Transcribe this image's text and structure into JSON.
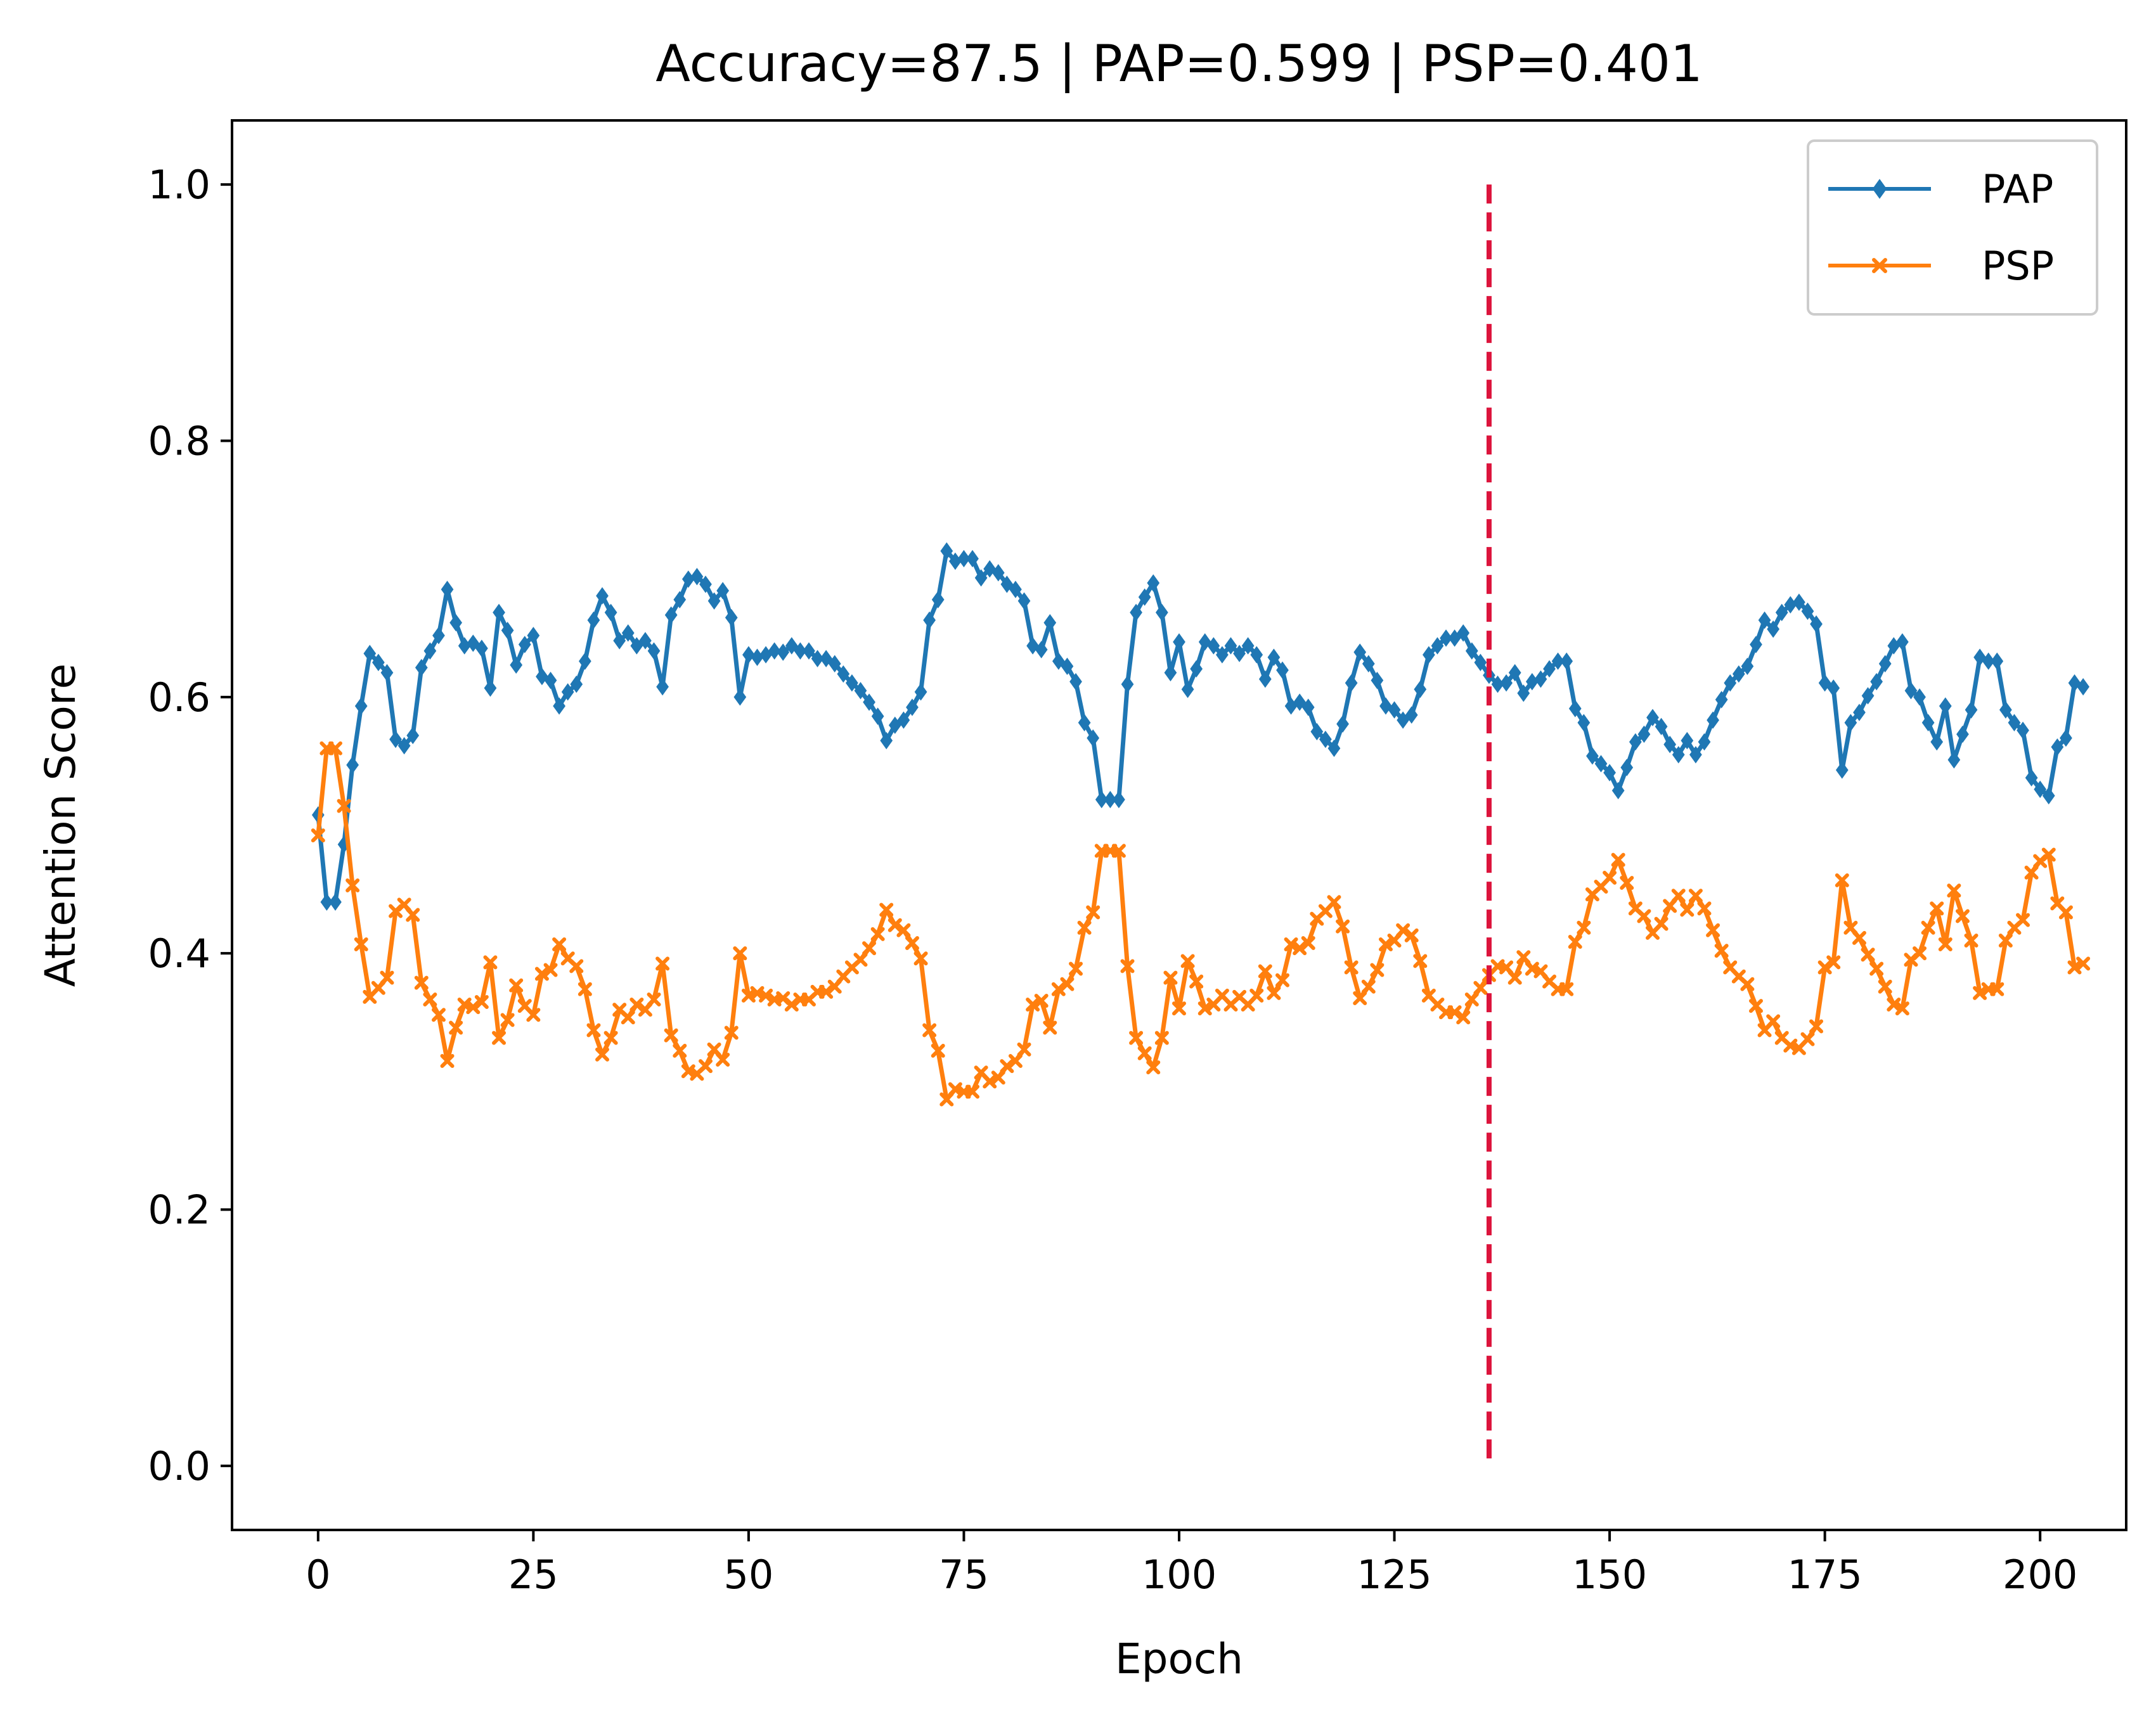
{
  "chart_data": {
    "type": "line",
    "title": "Accuracy=87.5 | PAP=0.599 | PSP=0.401",
    "xlabel": "Epoch",
    "ylabel": "Attention Score",
    "xlim": [
      -10,
      210
    ],
    "ylim": [
      -0.05,
      1.05
    ],
    "xticks": [
      0,
      25,
      50,
      75,
      100,
      125,
      150,
      175,
      200
    ],
    "xtick_labels": [
      "0",
      "25",
      "50",
      "75",
      "100",
      "125",
      "150",
      "175",
      "200"
    ],
    "yticks": [
      0.0,
      0.2,
      0.4,
      0.6,
      0.8,
      1.0
    ],
    "ytick_labels": [
      "0.0",
      "0.2",
      "0.4",
      "0.6",
      "0.8",
      "1.0"
    ],
    "grid": false,
    "legend_position": "top-right",
    "vline": {
      "x": 136,
      "y_range": [
        0,
        1
      ],
      "style": "dashed",
      "color": "#dc143c"
    },
    "series": [
      {
        "name": "PAP",
        "color": "#1f77b4",
        "marker": "diamond",
        "values": [
          0.508,
          0.44,
          0.44,
          0.485,
          0.547,
          0.593,
          0.634,
          0.627,
          0.619,
          0.567,
          0.562,
          0.57,
          0.623,
          0.636,
          0.648,
          0.684,
          0.658,
          0.64,
          0.642,
          0.638,
          0.607,
          0.666,
          0.652,
          0.625,
          0.641,
          0.648,
          0.616,
          0.613,
          0.593,
          0.604,
          0.61,
          0.628,
          0.66,
          0.679,
          0.666,
          0.644,
          0.65,
          0.64,
          0.644,
          0.636,
          0.608,
          0.664,
          0.676,
          0.692,
          0.694,
          0.688,
          0.675,
          0.683,
          0.662,
          0.6,
          0.633,
          0.631,
          0.633,
          0.636,
          0.635,
          0.64,
          0.636,
          0.636,
          0.63,
          0.63,
          0.626,
          0.618,
          0.611,
          0.605,
          0.596,
          0.585,
          0.566,
          0.578,
          0.582,
          0.592,
          0.604,
          0.66,
          0.676,
          0.714,
          0.706,
          0.708,
          0.708,
          0.693,
          0.7,
          0.697,
          0.688,
          0.684,
          0.675,
          0.64,
          0.637,
          0.658,
          0.628,
          0.624,
          0.612,
          0.58,
          0.568,
          0.52,
          0.52,
          0.52,
          0.61,
          0.666,
          0.678,
          0.689,
          0.666,
          0.619,
          0.643,
          0.606,
          0.622,
          0.643,
          0.64,
          0.633,
          0.64,
          0.634,
          0.64,
          0.633,
          0.614,
          0.631,
          0.621,
          0.593,
          0.596,
          0.592,
          0.573,
          0.567,
          0.56,
          0.579,
          0.611,
          0.635,
          0.626,
          0.613,
          0.593,
          0.59,
          0.582,
          0.586,
          0.606,
          0.633,
          0.64,
          0.646,
          0.646,
          0.65,
          0.636,
          0.627,
          0.617,
          0.61,
          0.611,
          0.619,
          0.603,
          0.612,
          0.614,
          0.622,
          0.628,
          0.628,
          0.591,
          0.58,
          0.554,
          0.548,
          0.541,
          0.527,
          0.545,
          0.565,
          0.571,
          0.584,
          0.577,
          0.563,
          0.555,
          0.566,
          0.555,
          0.565,
          0.582,
          0.598,
          0.611,
          0.618,
          0.624,
          0.641,
          0.66,
          0.653,
          0.666,
          0.672,
          0.674,
          0.667,
          0.657,
          0.611,
          0.607,
          0.543,
          0.58,
          0.588,
          0.601,
          0.612,
          0.626,
          0.64,
          0.643,
          0.605,
          0.6,
          0.58,
          0.565,
          0.593,
          0.551,
          0.571,
          0.59,
          0.631,
          0.628,
          0.628,
          0.59,
          0.58,
          0.574,
          0.537,
          0.528,
          0.523,
          0.561,
          0.568,
          0.611,
          0.608
        ]
      },
      {
        "name": "PSP",
        "color": "#ff7f0e",
        "marker": "x",
        "values": [
          0.492,
          0.56,
          0.56,
          0.515,
          0.453,
          0.407,
          0.366,
          0.373,
          0.381,
          0.433,
          0.438,
          0.43,
          0.377,
          0.364,
          0.352,
          0.316,
          0.342,
          0.36,
          0.358,
          0.362,
          0.393,
          0.334,
          0.348,
          0.375,
          0.359,
          0.352,
          0.384,
          0.387,
          0.407,
          0.396,
          0.39,
          0.372,
          0.34,
          0.321,
          0.334,
          0.356,
          0.35,
          0.36,
          0.356,
          0.364,
          0.392,
          0.336,
          0.324,
          0.308,
          0.306,
          0.312,
          0.325,
          0.317,
          0.338,
          0.4,
          0.367,
          0.369,
          0.367,
          0.364,
          0.365,
          0.36,
          0.364,
          0.364,
          0.37,
          0.37,
          0.374,
          0.382,
          0.389,
          0.395,
          0.404,
          0.415,
          0.434,
          0.422,
          0.418,
          0.408,
          0.396,
          0.34,
          0.324,
          0.286,
          0.294,
          0.292,
          0.292,
          0.307,
          0.3,
          0.303,
          0.312,
          0.316,
          0.325,
          0.36,
          0.363,
          0.342,
          0.372,
          0.376,
          0.388,
          0.42,
          0.432,
          0.48,
          0.48,
          0.48,
          0.39,
          0.334,
          0.322,
          0.311,
          0.334,
          0.381,
          0.357,
          0.394,
          0.378,
          0.357,
          0.36,
          0.367,
          0.36,
          0.366,
          0.36,
          0.367,
          0.386,
          0.369,
          0.379,
          0.407,
          0.404,
          0.408,
          0.427,
          0.433,
          0.44,
          0.421,
          0.389,
          0.365,
          0.374,
          0.387,
          0.407,
          0.41,
          0.418,
          0.414,
          0.394,
          0.367,
          0.36,
          0.354,
          0.354,
          0.35,
          0.364,
          0.373,
          0.383,
          0.39,
          0.389,
          0.381,
          0.397,
          0.388,
          0.386,
          0.378,
          0.372,
          0.372,
          0.409,
          0.42,
          0.446,
          0.452,
          0.459,
          0.473,
          0.455,
          0.435,
          0.429,
          0.416,
          0.423,
          0.437,
          0.445,
          0.434,
          0.445,
          0.435,
          0.418,
          0.402,
          0.389,
          0.382,
          0.376,
          0.359,
          0.34,
          0.347,
          0.334,
          0.328,
          0.326,
          0.333,
          0.343,
          0.389,
          0.393,
          0.457,
          0.42,
          0.412,
          0.399,
          0.388,
          0.374,
          0.36,
          0.357,
          0.395,
          0.4,
          0.42,
          0.435,
          0.407,
          0.449,
          0.429,
          0.41,
          0.369,
          0.372,
          0.372,
          0.41,
          0.42,
          0.426,
          0.463,
          0.472,
          0.477,
          0.439,
          0.432,
          0.389,
          0.392
        ]
      }
    ]
  }
}
